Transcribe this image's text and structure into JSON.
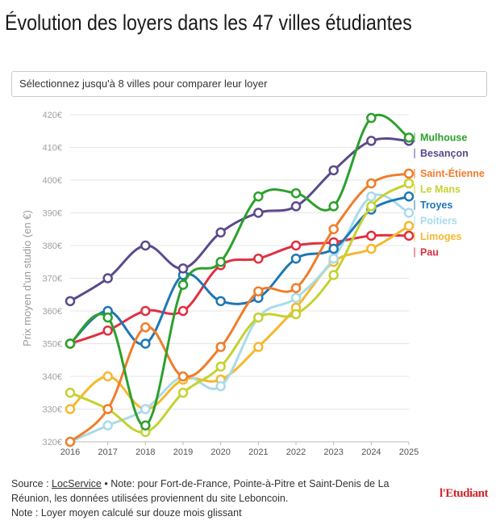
{
  "title": "Évolution des loyers dans les 47 villes étudiantes",
  "selector": {
    "placeholder": "Sélectionnez jusqu'à 8 villes pour comparer leur loyer"
  },
  "footer": {
    "source_prefix": "Source : ",
    "source_link": "LocService",
    "note1": " • Note: pour Fort-de-France, Pointe-à-Pitre et Saint-Denis de La Réunion, les données utilisées proviennent du site Leboncoin.",
    "note2": "Note : Loyer moyen calculé sur douze mois glissant"
  },
  "brand": "l'Etudiant",
  "chart_data": {
    "type": "line",
    "ylabel": "Prix moyen d'un studio (en €)",
    "xlabel": "",
    "ylim": [
      320,
      420
    ],
    "y_ticks": [
      "320€",
      "330€",
      "340€",
      "350€",
      "360€",
      "370€",
      "380€",
      "390€",
      "400€",
      "410€",
      "420€"
    ],
    "y_tick_values": [
      320,
      330,
      340,
      350,
      360,
      370,
      380,
      390,
      400,
      410,
      420
    ],
    "grid": true,
    "legend_placement": "right (end-of-line labels)",
    "x": [
      "2016",
      "2017",
      "2018",
      "2019",
      "2020",
      "2021",
      "2022",
      "2023",
      "2024",
      "2025"
    ],
    "series": [
      {
        "name": "Mulhouse",
        "color": "#2ca02c",
        "values": [
          350,
          358,
          325,
          368,
          375,
          395,
          396,
          392,
          419,
          413
        ]
      },
      {
        "name": "Besançon",
        "color": "#5b4a8b",
        "values": [
          363,
          370,
          380,
          373,
          384,
          390,
          392,
          403,
          412,
          412
        ]
      },
      {
        "name": "Saint-Étienne",
        "color": "#f07d2a",
        "values": [
          320,
          330,
          355,
          340,
          349,
          366,
          367,
          385,
          399,
          402
        ]
      },
      {
        "name": "Le Mans",
        "color": "#c4d22f",
        "values": [
          335,
          330,
          323,
          335,
          343,
          358,
          359,
          371,
          392,
          399
        ]
      },
      {
        "name": "Troyes",
        "color": "#1f77b4",
        "values": [
          350,
          360,
          350,
          371,
          363,
          364,
          376,
          379,
          391,
          395
        ]
      },
      {
        "name": "Poitiers",
        "color": "#a8dbe8",
        "values": [
          320,
          325,
          330,
          340,
          337,
          358,
          364,
          376,
          395,
          390
        ]
      },
      {
        "name": "Limoges",
        "color": "#f5b82e",
        "values": [
          330,
          340,
          330,
          339,
          339,
          349,
          361,
          375,
          379,
          386
        ]
      },
      {
        "name": "Pau",
        "color": "#e03040",
        "values": [
          350,
          354,
          360,
          360,
          374,
          376,
          380,
          381,
          383,
          383
        ]
      }
    ]
  }
}
